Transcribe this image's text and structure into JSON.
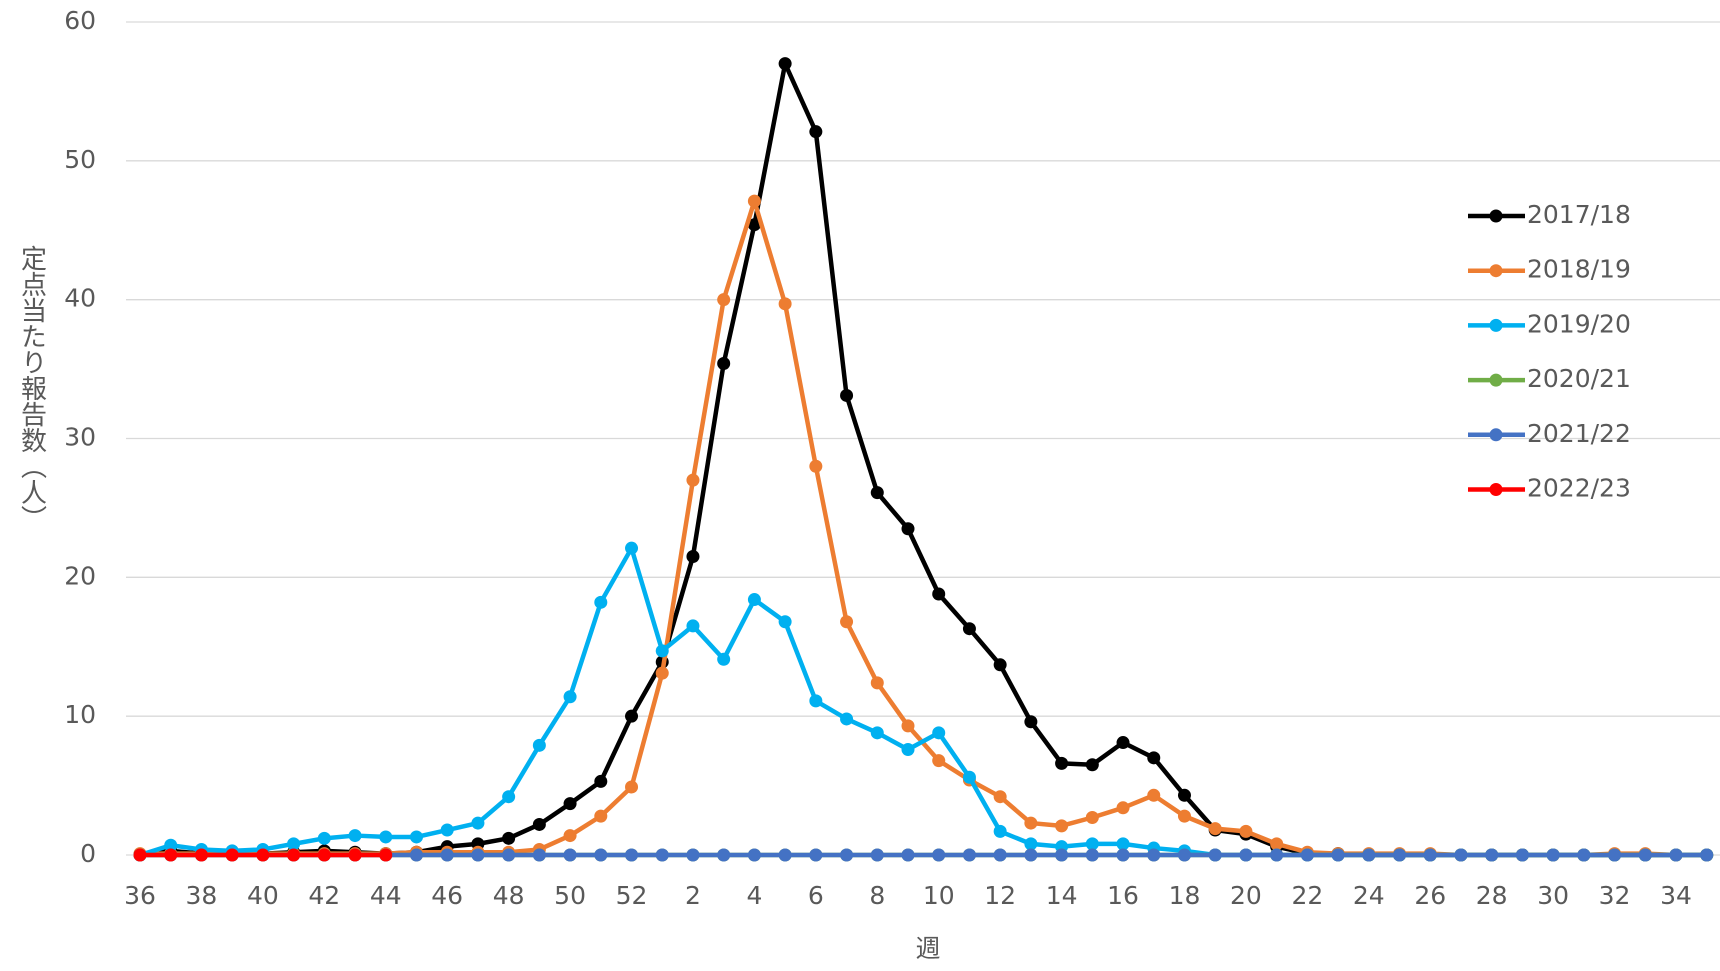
{
  "chart_data": {
    "type": "line",
    "y_label": "定点当たり報告数（人）",
    "x_label": "週",
    "categories": [
      "36",
      null,
      "38",
      null,
      "40",
      null,
      "42",
      null,
      "44",
      null,
      "46",
      null,
      "48",
      null,
      "50",
      null,
      "52",
      null,
      "2",
      null,
      "4",
      null,
      "6",
      null,
      "8",
      null,
      "10",
      null,
      "12",
      null,
      "14",
      null,
      "16",
      null,
      "18",
      null,
      "20",
      null,
      "22",
      null,
      "24",
      null,
      "26",
      null,
      "28",
      null,
      "30",
      null,
      "32",
      null,
      "34",
      null
    ],
    "ylim": [
      0,
      60
    ],
    "yticks": [
      0,
      10,
      20,
      30,
      40,
      50,
      60
    ],
    "grid": true,
    "legend": "right",
    "series": [
      {
        "name": "2017/18",
        "color": "#000000",
        "values": [
          0,
          0.3,
          0.1,
          0.1,
          0.1,
          0.2,
          0.3,
          0.2,
          0.1,
          0.2,
          0.6,
          0.8,
          1.2,
          2.2,
          3.7,
          5.3,
          10.0,
          13.9,
          21.5,
          35.4,
          45.4,
          57.0,
          52.1,
          33.1,
          26.1,
          23.5,
          18.8,
          16.3,
          13.7,
          9.6,
          6.6,
          6.5,
          8.1,
          7.0,
          4.3,
          1.8,
          1.5,
          0.6,
          0.1,
          0.1,
          0,
          0,
          0,
          0,
          0,
          0,
          0,
          0,
          0,
          0,
          0,
          0
        ]
      },
      {
        "name": "2018/19",
        "color": "#ed7d31",
        "values": [
          0.1,
          0.1,
          0.1,
          0.1,
          0.1,
          0.1,
          0.1,
          0.1,
          0.1,
          0.2,
          0.2,
          0.2,
          0.2,
          0.4,
          1.4,
          2.8,
          4.9,
          13.1,
          27.0,
          40.0,
          47.1,
          39.7,
          28.0,
          16.8,
          12.4,
          9.3,
          6.8,
          5.4,
          4.2,
          2.3,
          2.1,
          2.7,
          3.4,
          4.3,
          2.8,
          1.9,
          1.7,
          0.8,
          0.2,
          0.1,
          0.1,
          0.1,
          0.1,
          0,
          0,
          0,
          0,
          0,
          0.1,
          0.1,
          0,
          0
        ]
      },
      {
        "name": "2019/20",
        "color": "#00b0f0",
        "values": [
          0,
          0.7,
          0.4,
          0.3,
          0.4,
          0.8,
          1.2,
          1.4,
          1.3,
          1.3,
          1.8,
          2.3,
          4.2,
          7.9,
          11.4,
          18.2,
          22.1,
          14.7,
          16.5,
          14.1,
          18.4,
          16.8,
          11.1,
          9.8,
          8.8,
          7.6,
          8.8,
          5.6,
          1.7,
          0.8,
          0.6,
          0.8,
          0.8,
          0.5,
          0.3,
          0,
          0,
          0,
          0,
          0,
          0,
          0,
          0,
          0,
          0,
          0,
          0,
          0,
          0,
          0,
          0,
          0
        ]
      },
      {
        "name": "2020/21",
        "color": "#70ad47",
        "values": [
          0,
          0,
          0,
          0,
          0,
          0,
          0,
          0,
          0,
          0,
          0,
          0,
          0,
          0,
          0,
          0,
          0,
          0,
          0,
          0,
          0,
          0,
          0,
          0,
          0,
          0,
          0,
          0,
          0,
          0,
          0,
          0,
          0,
          0,
          0,
          0,
          0,
          0,
          0,
          0,
          0,
          0,
          0,
          0,
          0,
          0,
          0,
          0,
          0,
          0,
          0,
          0
        ]
      },
      {
        "name": "2021/22",
        "color": "#4472c4",
        "values": [
          0,
          0,
          0,
          0,
          0,
          0,
          0,
          0,
          0,
          0,
          0,
          0,
          0,
          0,
          0,
          0,
          0,
          0,
          0,
          0,
          0,
          0,
          0,
          0,
          0,
          0,
          0,
          0,
          0,
          0,
          0,
          0,
          0,
          0,
          0,
          0,
          0,
          0,
          0,
          0,
          0,
          0,
          0,
          0,
          0,
          0,
          0,
          0,
          0,
          0,
          0,
          0
        ]
      },
      {
        "name": "2022/23",
        "color": "#ff0000",
        "values": [
          0,
          0,
          0,
          0,
          0,
          0,
          0,
          0,
          0,
          null,
          null,
          null,
          null,
          null,
          null,
          null,
          null,
          null,
          null,
          null,
          null,
          null,
          null,
          null,
          null,
          null,
          null,
          null,
          null,
          null,
          null,
          null,
          null,
          null,
          null,
          null,
          null,
          null,
          null,
          null,
          null,
          null,
          null,
          null,
          null,
          null,
          null,
          null,
          null,
          null,
          null,
          null
        ]
      }
    ]
  }
}
